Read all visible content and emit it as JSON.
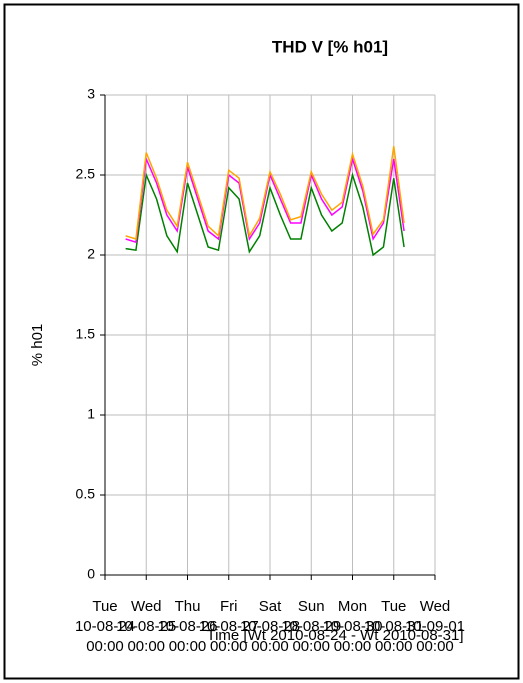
{
  "chart_data": {
    "type": "line",
    "title": "THD V [% h01]",
    "x_label": "Time [Wt 2010-08-24 - Wt 2010-08-31]",
    "y_label": "% h01",
    "xlim": [
      0,
      8
    ],
    "xticks": [
      {
        "value": 0,
        "label": [
          "Tue",
          "10-08-24",
          "00:00"
        ]
      },
      {
        "value": 1,
        "label": [
          "Wed",
          "10-08-25",
          "00:00"
        ]
      },
      {
        "value": 2,
        "label": [
          "Thu",
          "10-08-26",
          "00:00"
        ]
      },
      {
        "value": 3,
        "label": [
          "Fri",
          "10-08-27",
          "00:00"
        ]
      },
      {
        "value": 4,
        "label": [
          "Sat",
          "10-08-28",
          "00:00"
        ]
      },
      {
        "value": 5,
        "label": [
          "Sun",
          "10-08-29",
          "00:00"
        ]
      },
      {
        "value": 6,
        "label": [
          "Mon",
          "10-08-30",
          "00:00"
        ]
      },
      {
        "value": 7,
        "label": [
          "Tue",
          "10-08-31",
          "00:00"
        ]
      },
      {
        "value": 8,
        "label": [
          "Wed",
          "10-09-01",
          "00:00"
        ]
      }
    ],
    "ylim": [
      0,
      3
    ],
    "yticks": [
      0,
      0.5,
      1,
      1.5,
      2,
      2.5,
      3
    ],
    "grid": true,
    "x": [
      0.5,
      0.75,
      1,
      1.25,
      1.5,
      1.75,
      2,
      2.25,
      2.5,
      2.75,
      3,
      3.25,
      3.5,
      3.75,
      4,
      4.25,
      4.5,
      4.75,
      5,
      5.25,
      5.5,
      5.75,
      6,
      6.25,
      6.5,
      6.75,
      7,
      7.25
    ],
    "series": [
      {
        "color": "#ffa500",
        "values": [
          2.12,
          2.1,
          2.64,
          2.48,
          2.28,
          2.18,
          2.58,
          2.38,
          2.18,
          2.12,
          2.53,
          2.48,
          2.12,
          2.23,
          2.52,
          2.38,
          2.22,
          2.24,
          2.52,
          2.38,
          2.28,
          2.33,
          2.63,
          2.43,
          2.13,
          2.22,
          2.68,
          2.2
        ]
      },
      {
        "color": "#ff00ff",
        "values": [
          2.1,
          2.08,
          2.6,
          2.45,
          2.25,
          2.15,
          2.55,
          2.35,
          2.15,
          2.1,
          2.5,
          2.45,
          2.1,
          2.2,
          2.5,
          2.35,
          2.2,
          2.2,
          2.5,
          2.35,
          2.25,
          2.3,
          2.6,
          2.4,
          2.1,
          2.2,
          2.6,
          2.15
        ]
      },
      {
        "color": "#008000",
        "values": [
          2.04,
          2.03,
          2.5,
          2.35,
          2.12,
          2.02,
          2.45,
          2.25,
          2.05,
          2.03,
          2.42,
          2.35,
          2.02,
          2.12,
          2.42,
          2.25,
          2.1,
          2.1,
          2.42,
          2.25,
          2.15,
          2.2,
          2.5,
          2.3,
          2.0,
          2.05,
          2.48,
          2.05
        ]
      }
    ]
  }
}
